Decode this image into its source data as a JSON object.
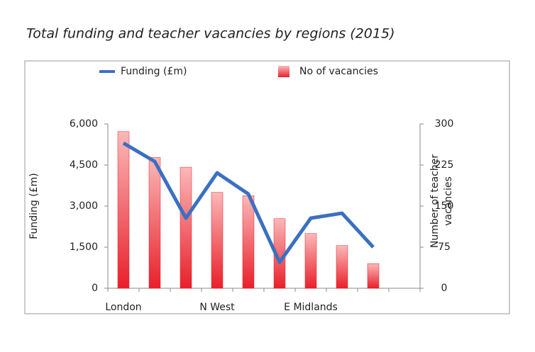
{
  "chart_data": {
    "type": "bar_line",
    "title": "Total funding and teacher vacancies by regions (2015)",
    "y_label": "Funding (£m)",
    "y2_label": "Number of teacher vacancies",
    "categories": [
      "London",
      null,
      null,
      "N West",
      null,
      null,
      "E Midlands",
      null,
      null,
      null
    ],
    "series": [
      {
        "name": "Funding (£m)",
        "type": "line",
        "color": "#3a70c2",
        "axis": "y",
        "values": [
          5300,
          4630,
          2560,
          4215,
          3440,
          950,
          2560,
          2740,
          1500,
          null
        ]
      },
      {
        "name": "No of vacancies",
        "type": "bar",
        "color": "#e8202a",
        "axis": "y2",
        "values": [
          286,
          239,
          221,
          175,
          169,
          127,
          100,
          78,
          45,
          null
        ]
      }
    ],
    "ylim": [
      0,
      6000
    ],
    "yticks": [
      0,
      {
        "value": 1500,
        "label": "1,500"
      },
      {
        "value": 3000,
        "label": "3,000"
      },
      {
        "value": 4500,
        "label": "4,500"
      },
      {
        "value": 6000,
        "label": "6,000"
      }
    ],
    "y2lim": [
      0,
      300
    ],
    "y2ticks": [
      0,
      75,
      150,
      225,
      300
    ],
    "grid": false,
    "legend": "top"
  }
}
